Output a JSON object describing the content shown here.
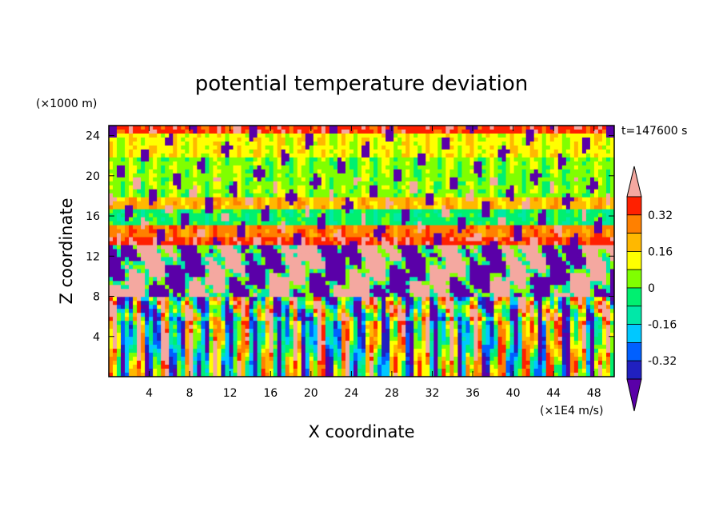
{
  "chart_data": {
    "type": "heatmap",
    "title": "potential temperature deviation",
    "xlabel": "X coordinate",
    "ylabel": "Z coordinate",
    "x_unit": "(×1E4 m/s)",
    "y_unit": "(×1000 m)",
    "time_label": "t=147600 s",
    "xlim": [
      0,
      50
    ],
    "ylim": [
      0,
      25
    ],
    "x_ticks": [
      "4",
      "8",
      "12",
      "16",
      "20",
      "24",
      "28",
      "32",
      "36",
      "40",
      "44",
      "48"
    ],
    "y_ticks": [
      "4",
      "8",
      "12",
      "16",
      "20",
      "24"
    ],
    "colorbar": {
      "levels": [
        -0.4,
        -0.32,
        -0.24,
        -0.16,
        -0.08,
        0,
        0.08,
        0.16,
        0.24,
        0.32,
        0.4
      ],
      "tick_labels": [
        "0.32",
        "0.16",
        "0",
        "-0.16",
        "-0.32"
      ],
      "colors": [
        "#5a00a8",
        "#2020c0",
        "#0060ff",
        "#00c8ff",
        "#00e8a8",
        "#00f070",
        "#80ff00",
        "#ffff00",
        "#ffb800",
        "#ff8000",
        "#ff2000",
        "#f4a8a0"
      ],
      "bins": [
        {
          "range": "< -0.4",
          "color": "#5a00a8"
        },
        {
          "range": "-0.4 to -0.32",
          "color": "#5a00a8"
        },
        {
          "range": "-0.32 to -0.24",
          "color": "#2020c0"
        },
        {
          "range": "-0.24 to -0.16",
          "color": "#0060ff"
        },
        {
          "range": "-0.16 to -0.08",
          "color": "#00c8ff"
        },
        {
          "range": "-0.08 to 0",
          "color": "#00e8a8"
        },
        {
          "range": "0 to 0.08",
          "color": "#00f070"
        },
        {
          "range": "0.08 to 0.16",
          "color": "#80ff00"
        },
        {
          "range": "0.16 to 0.24",
          "color": "#ffff00"
        },
        {
          "range": "0.24 to 0.32",
          "color": "#ffb800"
        },
        {
          "range": "0.32 to 0.4",
          "color": "#ff8000"
        },
        {
          "range": "> 0.4",
          "color": "#f4a8a0"
        }
      ]
    },
    "layers": [
      {
        "z_range": [
          24.3,
          25
        ],
        "description": "red/orange top band",
        "value": 0.36
      },
      {
        "z_range": [
          22,
          24.3
        ],
        "description": "yellow-green",
        "value": 0.12
      },
      {
        "z_range": [
          18,
          22
        ],
        "description": "green/cyan-green",
        "value": 0.04
      },
      {
        "z_range": [
          16.5,
          18
        ],
        "description": "yellow",
        "value": 0.2
      },
      {
        "z_range": [
          15,
          16.5
        ],
        "description": "cyan-green",
        "value": -0.04
      },
      {
        "z_range": [
          14,
          15
        ],
        "description": "orange/yellow",
        "value": 0.28
      },
      {
        "z_range": [
          13,
          14
        ],
        "description": "red",
        "value": 0.36
      },
      {
        "z_range": [
          8,
          13
        ],
        "description": "mixed pink and purple",
        "value": 0.0
      },
      {
        "z_range": [
          0,
          8
        ],
        "description": "oscillating multicolour",
        "value": 0.0
      }
    ]
  }
}
